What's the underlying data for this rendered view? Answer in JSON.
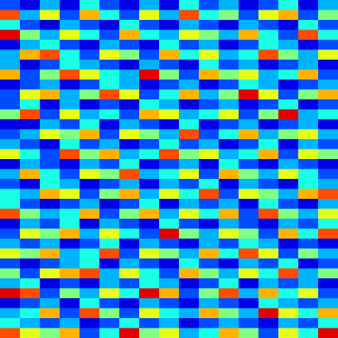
{
  "chart_data": {
    "type": "heatmap",
    "tick_labels": false,
    "color_range": [
      0,
      1
    ],
    "cells": [
      [
        0.2,
        0.1,
        0.3,
        0.1,
        0.4,
        0.2,
        0.1,
        0.3,
        0.1,
        0.4,
        0.2,
        0.3,
        0.1,
        0.2,
        0.4,
        0.1,
        0.3
      ],
      [
        0.8,
        0.3,
        0.6,
        0.2,
        0.7,
        0.4,
        0.2,
        0.6,
        0.3,
        0.8,
        0.4,
        0.5,
        0.2,
        0.6,
        0.7,
        0.2,
        0.5
      ],
      [
        0.4,
        0.2,
        0.1,
        0.3,
        0.2,
        0.1,
        0.4,
        0.2,
        0.1,
        0.3,
        0.2,
        0.1,
        0.3,
        0.2,
        0.1,
        0.4,
        0.2
      ],
      [
        0.9,
        0.5,
        0.3,
        0.6,
        0.4,
        0.2,
        0.7,
        0.4,
        0.3,
        0.6,
        0.5,
        0.3,
        0.7,
        0.4,
        0.2,
        0.8,
        0.4
      ],
      [
        0.1,
        0.3,
        0.4,
        0.2,
        0.1,
        0.3,
        0.2,
        0.1,
        0.4,
        0.2,
        0.3,
        0.1,
        0.2,
        0.4,
        0.3,
        0.1,
        0.2
      ],
      [
        0.3,
        0.7,
        0.8,
        0.4,
        0.2,
        0.6,
        0.5,
        0.2,
        0.7,
        0.4,
        0.6,
        0.3,
        0.4,
        0.8,
        0.5,
        0.3,
        0.6
      ],
      [
        0.3,
        0.1,
        0.2,
        0.4,
        0.3,
        0.2,
        0.1,
        0.3,
        0.2,
        0.1,
        0.4,
        0.2,
        0.3,
        0.1,
        0.2,
        0.3,
        0.1
      ],
      [
        0.7,
        0.2,
        0.5,
        0.8,
        0.6,
        0.4,
        0.3,
        0.9,
        0.5,
        0.2,
        0.7,
        0.5,
        0.6,
        0.3,
        0.4,
        0.7,
        0.2
      ],
      [
        0.1,
        0.2,
        0.3,
        0.1,
        0.2,
        0.4,
        0.3,
        0.1,
        0.2,
        0.3,
        0.1,
        0.2,
        0.4,
        0.3,
        0.1,
        0.2,
        0.3
      ],
      [
        0.2,
        0.6,
        0.7,
        0.3,
        0.5,
        0.8,
        0.6,
        0.2,
        0.4,
        0.7,
        0.3,
        0.5,
        0.9,
        0.6,
        0.2,
        0.5,
        0.7
      ],
      [
        0.2,
        0.4,
        0.1,
        0.3,
        0.1,
        0.2,
        0.1,
        0.4,
        0.3,
        0.1,
        0.2,
        0.3,
        0.1,
        0.2,
        0.4,
        0.1,
        0.2
      ],
      [
        0.5,
        0.8,
        0.2,
        0.6,
        0.3,
        0.4,
        0.2,
        0.7,
        0.6,
        0.3,
        0.4,
        0.6,
        0.2,
        0.5,
        0.9,
        0.3,
        0.4
      ],
      [
        0.1,
        0.1,
        0.3,
        0.2,
        0.4,
        0.1,
        0.3,
        0.2,
        0.1,
        0.4,
        0.1,
        0.2,
        0.3,
        0.1,
        0.2,
        0.3,
        0.1
      ],
      [
        0.2,
        0.3,
        0.6,
        0.5,
        0.7,
        0.2,
        0.6,
        0.5,
        0.3,
        0.8,
        0.2,
        0.4,
        0.7,
        0.3,
        0.5,
        0.6,
        0.3
      ],
      [
        0.3,
        0.2,
        0.1,
        0.4,
        0.2,
        0.3,
        0.1,
        0.2,
        0.4,
        0.2,
        0.3,
        0.1,
        0.2,
        0.4,
        0.1,
        0.3,
        0.2
      ],
      [
        0.6,
        0.4,
        0.2,
        0.8,
        0.5,
        0.7,
        0.3,
        0.4,
        0.8,
        0.5,
        0.6,
        0.3,
        0.4,
        0.7,
        0.2,
        0.6,
        0.5
      ],
      [
        0.1,
        0.3,
        0.2,
        0.1,
        0.3,
        0.2,
        0.4,
        0.1,
        0.2,
        0.3,
        0.1,
        0.4,
        0.2,
        0.1,
        0.3,
        0.2,
        0.1
      ],
      [
        0.3,
        0.7,
        0.4,
        0.2,
        0.6,
        0.5,
        0.8,
        0.3,
        0.4,
        0.6,
        0.2,
        0.7,
        0.5,
        0.3,
        0.6,
        0.4,
        0.2
      ],
      [
        0.2,
        0.1,
        0.4,
        0.3,
        0.1,
        0.2,
        0.3,
        0.1,
        0.3,
        0.2,
        0.4,
        0.1,
        0.3,
        0.2,
        0.1,
        0.4,
        0.3
      ],
      [
        0.4,
        0.3,
        0.7,
        0.6,
        0.2,
        0.5,
        0.7,
        0.3,
        0.6,
        0.4,
        0.8,
        0.2,
        0.6,
        0.5,
        0.3,
        0.7,
        0.8
      ],
      [
        0.4,
        0.2,
        0.1,
        0.2,
        0.3,
        0.1,
        0.2,
        0.4,
        0.1,
        0.3,
        0.2,
        0.3,
        0.1,
        0.4,
        0.2,
        0.1,
        0.3
      ],
      [
        0.8,
        0.5,
        0.3,
        0.4,
        0.7,
        0.2,
        0.5,
        0.7,
        0.3,
        0.6,
        0.4,
        0.7,
        0.2,
        0.8,
        0.5,
        0.3,
        0.6
      ],
      [
        0.1,
        0.3,
        0.2,
        0.4,
        0.1,
        0.3,
        0.2,
        0.1,
        0.4,
        0.2,
        0.1,
        0.3,
        0.2,
        0.1,
        0.3,
        0.2,
        0.4
      ],
      [
        0.2,
        0.6,
        0.5,
        0.7,
        0.3,
        0.6,
        0.4,
        0.2,
        0.9,
        0.5,
        0.3,
        0.6,
        0.5,
        0.2,
        0.7,
        0.4,
        0.8
      ],
      [
        0.3,
        0.2,
        0.3,
        0.1,
        0.2,
        0.4,
        0.1,
        0.3,
        0.2,
        0.1,
        0.3,
        0.2,
        0.4,
        0.3,
        0.1,
        0.2,
        0.1
      ],
      [
        0.6,
        0.5,
        0.7,
        0.3,
        0.4,
        0.8,
        0.2,
        0.6,
        0.5,
        0.3,
        0.7,
        0.4,
        0.8,
        0.6,
        0.2,
        0.5,
        0.3
      ],
      [
        0.2,
        0.1,
        0.2,
        0.3,
        0.4,
        0.1,
        0.3,
        0.2,
        0.1,
        0.4,
        0.2,
        0.1,
        0.3,
        0.2,
        0.4,
        0.1,
        0.2
      ],
      [
        0.5,
        0.2,
        0.6,
        0.7,
        0.8,
        0.3,
        0.6,
        0.4,
        0.2,
        0.7,
        0.5,
        0.3,
        0.6,
        0.4,
        0.8,
        0.3,
        0.5
      ],
      [
        0.3,
        0.4,
        0.1,
        0.2,
        0.1,
        0.3,
        0.2,
        0.4,
        0.3,
        0.1,
        0.2,
        0.4,
        0.1,
        0.3,
        0.2,
        0.3,
        0.1
      ],
      [
        0.9,
        0.8,
        0.2,
        0.5,
        0.3,
        0.6,
        0.4,
        0.9,
        0.7,
        0.2,
        0.5,
        0.8,
        0.3,
        0.7,
        0.4,
        0.6,
        0.2
      ],
      [
        0.1,
        0.2,
        0.3,
        0.1,
        0.4,
        0.2,
        0.1,
        0.3,
        0.2,
        0.1,
        0.3,
        0.2,
        0.1,
        0.4,
        0.3,
        0.2,
        0.3
      ],
      [
        0.3,
        0.4,
        0.7,
        0.2,
        0.8,
        0.5,
        0.2,
        0.6,
        0.4,
        0.3,
        0.7,
        0.5,
        0.3,
        0.9,
        0.6,
        0.4,
        0.7
      ],
      [
        0.4,
        0.3,
        0.2,
        0.3,
        0.1,
        0.2,
        0.4,
        0.2,
        0.3,
        0.1,
        0.2,
        0.3,
        0.2,
        0.1,
        0.3,
        0.2,
        0.4
      ],
      [
        0.8,
        0.6,
        0.5,
        0.7,
        0.2,
        0.4,
        0.9,
        0.5,
        0.6,
        0.3,
        0.4,
        0.7,
        0.5,
        0.2,
        0.6,
        0.4,
        0.9
      ]
    ]
  }
}
